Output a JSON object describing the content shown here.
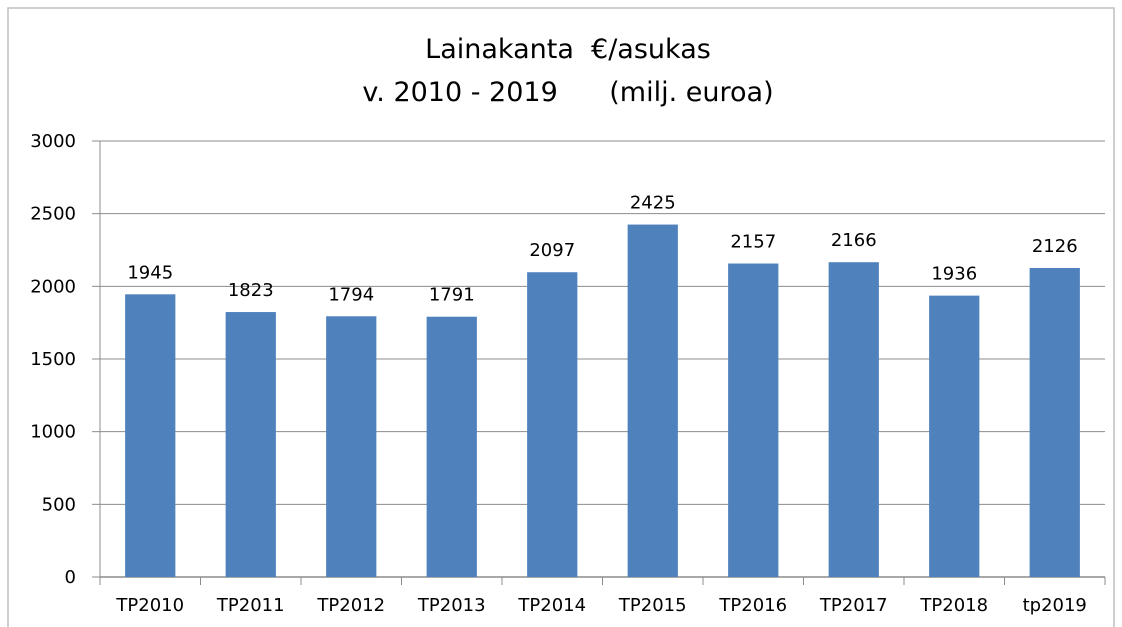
{
  "chart_data": {
    "type": "bar",
    "title": "Lainakanta  €/asukas",
    "subtitle": "v. 2010 - 2019      (milj. euroa)",
    "categories": [
      "TP2010",
      "TP2011",
      "TP2012",
      "TP2013",
      "TP2014",
      "TP2015",
      "TP2016",
      "TP2017",
      "TP2018",
      "tp2019"
    ],
    "values": [
      1945,
      1823,
      1794,
      1791,
      2097,
      2425,
      2157,
      2166,
      1936,
      2126
    ],
    "color": "#4f81bd",
    "ylim": [
      0,
      3000
    ],
    "yticks": [
      0,
      500,
      1000,
      1500,
      2000,
      2500,
      3000
    ],
    "grid": true
  }
}
